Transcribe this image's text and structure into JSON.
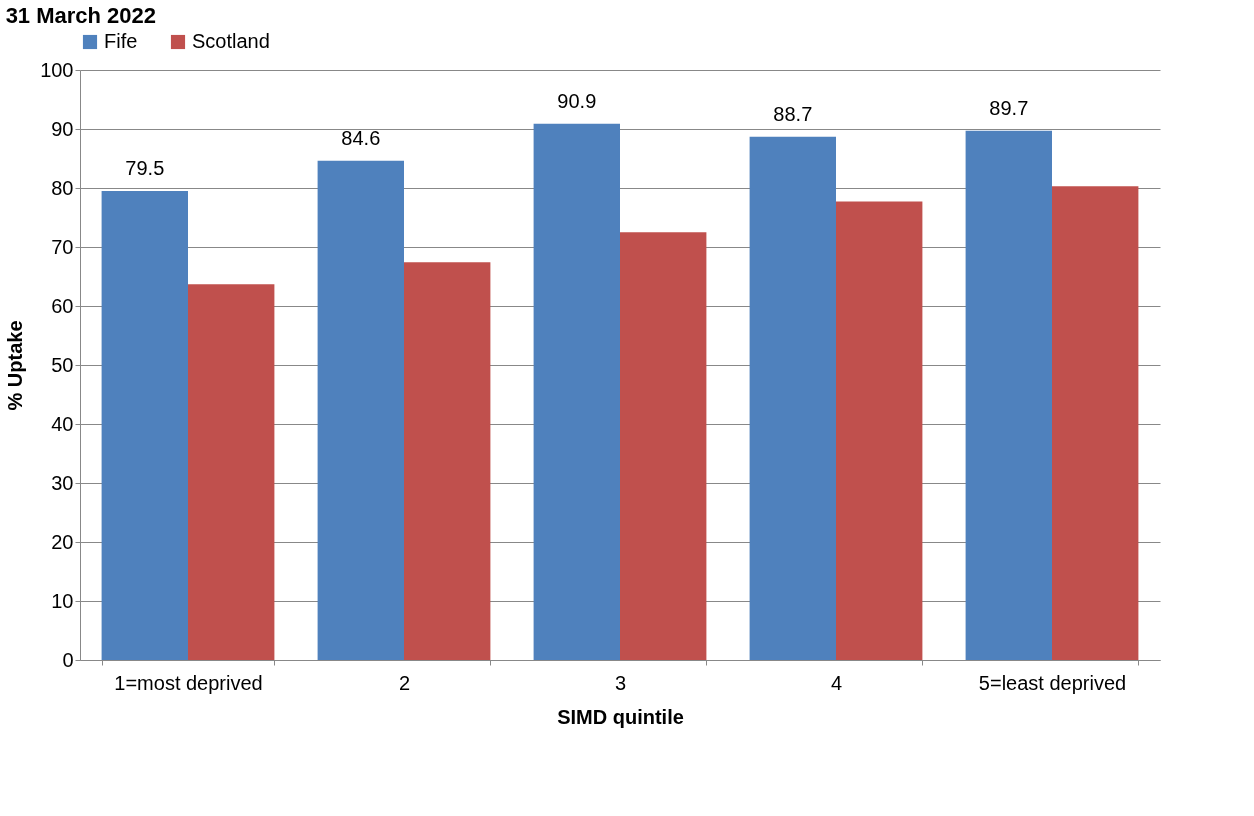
{
  "chart_data": {
    "type": "bar",
    "title": "31 March 2022",
    "xlabel": "SIMD quintile",
    "ylabel": "% Uptake",
    "categories": [
      "1=most deprived",
      "2",
      "3",
      "4",
      "5=least deprived"
    ],
    "series": [
      {
        "name": "Fife",
        "color": "#4f81bd",
        "values": [
          79.5,
          84.6,
          90.9,
          88.7,
          89.7
        ],
        "value_labels": [
          "79.5",
          "84.6",
          "90.9",
          "88.7",
          "89.7"
        ]
      },
      {
        "name": "Scotland",
        "color": "#c0504d",
        "values": [
          63.7,
          67.4,
          72.5,
          77.7,
          80.3
        ]
      }
    ],
    "ylim": [
      0,
      100
    ],
    "yticks": [
      0,
      10,
      20,
      30,
      40,
      50,
      60,
      70,
      80,
      90,
      100
    ],
    "grid": "y",
    "legend": "top"
  }
}
